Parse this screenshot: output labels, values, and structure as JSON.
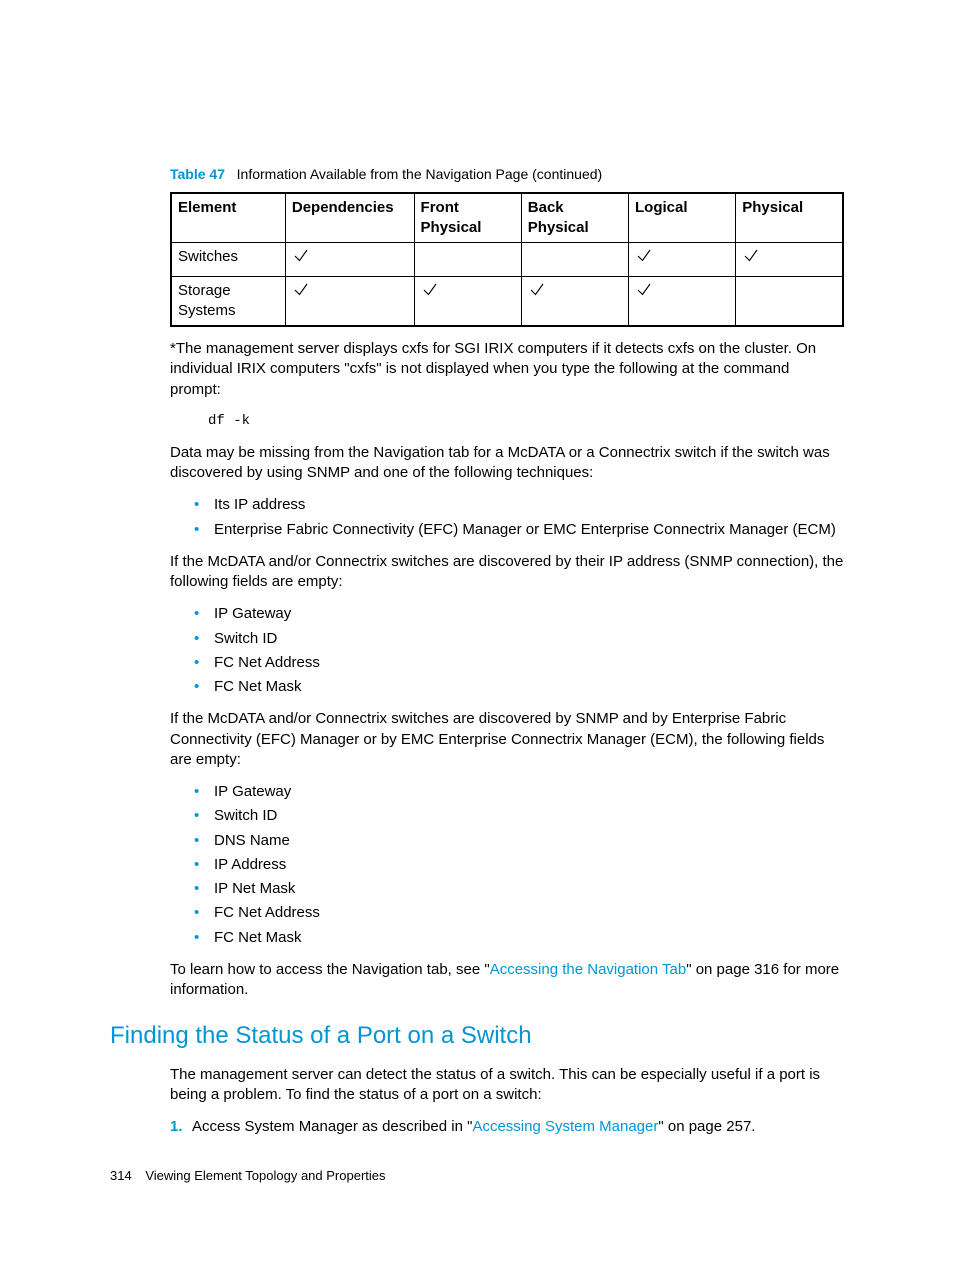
{
  "table": {
    "label": "Table 47",
    "caption": "Information Available from the Navigation Page (continued)",
    "headers": [
      "Element",
      "Dependencies",
      "Front Physical",
      "Back Physical",
      "Logical",
      "Physical"
    ],
    "rows": [
      {
        "element": "Switches",
        "checks": [
          true,
          false,
          false,
          true,
          true
        ]
      },
      {
        "element": "Storage Systems",
        "checks": [
          true,
          true,
          true,
          true,
          false
        ]
      }
    ]
  },
  "note": "*The management server displays cxfs for SGI IRIX computers if it detects cxfs on the cluster. On individual IRIX computers \"cxfs\" is not displayed when you type the following at the command prompt:",
  "cmd": "df -k",
  "para1": "Data may be missing from the Navigation tab for a McDATA or a Connectrix switch if the switch was discovered by using SNMP and one of the following techniques:",
  "list1": [
    "Its IP address",
    "Enterprise Fabric Connectivity (EFC) Manager or EMC Enterprise Connectrix Manager (ECM)"
  ],
  "para2": "If the McDATA and/or Connectrix switches are discovered by their IP address (SNMP connection), the following fields are empty:",
  "list2": [
    "IP Gateway",
    "Switch ID",
    "FC Net Address",
    "FC Net Mask"
  ],
  "para3": "If the McDATA and/or Connectrix switches are discovered by SNMP and by Enterprise Fabric Connectivity (EFC) Manager or by EMC Enterprise Connectrix Manager (ECM), the following fields are empty:",
  "list3": [
    "IP Gateway",
    "Switch ID",
    "DNS Name",
    "IP Address",
    "IP Net Mask",
    "FC Net Address",
    "FC Net Mask"
  ],
  "para4_pre": "To learn how to access the Navigation tab, see \"",
  "para4_link": "Accessing the Navigation Tab",
  "para4_post": "\" on page 316 for more information.",
  "heading": "Finding the Status of a Port on a Switch",
  "para5": "The management server can detect the status of a switch. This can be especially useful if a port is being a problem. To find the status of a port on a switch:",
  "step1_pre": "Access System Manager as described in \"",
  "step1_link": "Accessing System Manager",
  "step1_post": "\" on page 257.",
  "footer_page": "314",
  "footer_text": "Viewing Element Topology and Properties",
  "colors": {
    "accent": "#0096d6",
    "text": "#000000",
    "background": "#ffffff"
  }
}
